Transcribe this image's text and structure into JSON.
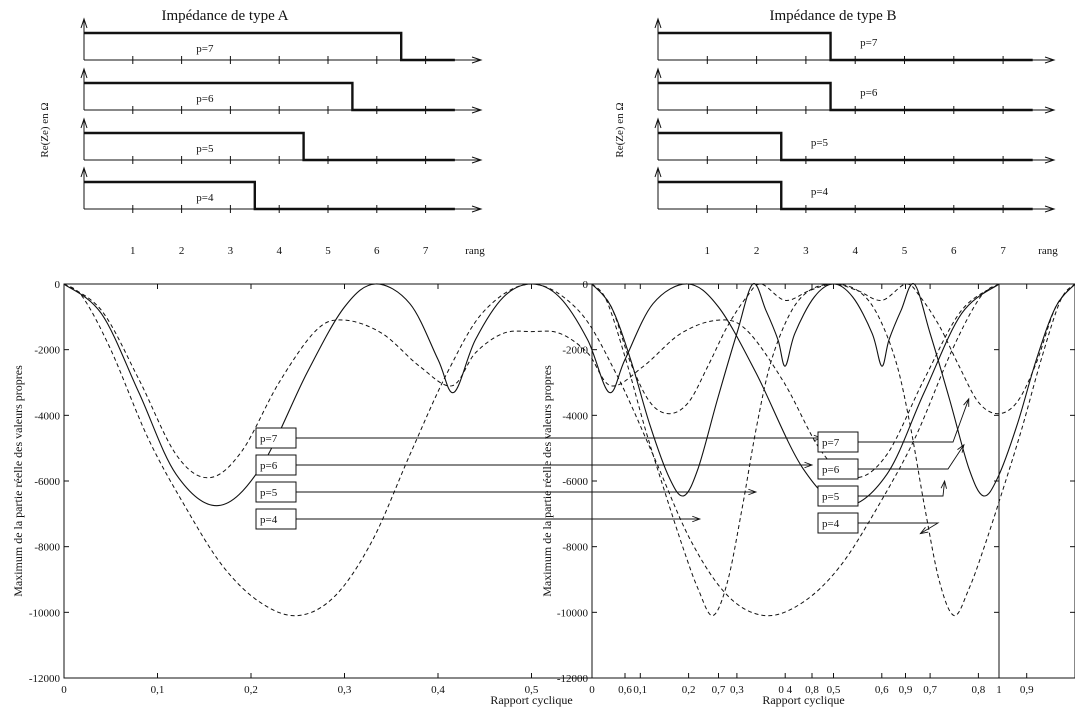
{
  "chart_data": [
    {
      "id": "A",
      "title": "Impédance de type A",
      "step_panel": {
        "ylabel": "Re(Ze) en  Ω",
        "xlabel": "rang",
        "x_ticks": [
          "1",
          "2",
          "3",
          "4",
          "5",
          "6",
          "7"
        ],
        "xlim": [
          0,
          7.6
        ],
        "rows": [
          {
            "label": "p=7",
            "edge": 6.5
          },
          {
            "label": "p=6",
            "edge": 5.5
          },
          {
            "label": "p=5",
            "edge": 4.5
          },
          {
            "label": "p=4",
            "edge": 3.5
          }
        ]
      },
      "main_panel": {
        "type": "line",
        "xlabel": "Rapport cyclique",
        "ylabel": "Maximum de la partie réelle des valeurs propres",
        "xlim": [
          0,
          1
        ],
        "ylim": [
          -12000,
          0
        ],
        "x_ticks": [
          {
            "v": 0,
            "t": "0"
          },
          {
            "v": 0.1,
            "t": "0,1"
          },
          {
            "v": 0.2,
            "t": "0,2"
          },
          {
            "v": 0.3,
            "t": "0,3"
          },
          {
            "v": 0.4,
            "t": "0,4"
          },
          {
            "v": 0.5,
            "t": "0,5"
          },
          {
            "v": 0.6,
            "t": "0,6"
          },
          {
            "v": 0.7,
            "t": "0,7"
          },
          {
            "v": 0.8,
            "t": "0,8"
          },
          {
            "v": 0.9,
            "t": "0,9"
          },
          {
            "v": 1,
            "t": "1"
          }
        ],
        "y_ticks": [
          {
            "v": 0,
            "t": "0"
          },
          {
            "v": -2000,
            "t": "-2000"
          },
          {
            "v": -4000,
            "t": "-4000"
          },
          {
            "v": -6000,
            "t": "-6000"
          },
          {
            "v": -8000,
            "t": "-8000"
          },
          {
            "v": -10000,
            "t": "-10000"
          },
          {
            "v": -12000,
            "t": "-12000"
          }
        ],
        "series": [
          {
            "name": "p=7",
            "style": "solid",
            "points": [
              [
                0,
                0
              ],
              [
                0.04,
                -900
              ],
              [
                0.08,
                -3300
              ],
              [
                0.12,
                -5800
              ],
              [
                0.165,
                -6750
              ],
              [
                0.21,
                -5600
              ],
              [
                0.26,
                -2700
              ],
              [
                0.3,
                -700
              ],
              [
                0.333,
                0
              ],
              [
                0.37,
                -600
              ],
              [
                0.4,
                -2300
              ],
              [
                0.417,
                -3300
              ],
              [
                0.44,
                -1700
              ],
              [
                0.47,
                -400
              ],
              [
                0.5,
                0
              ],
              [
                0.53,
                -400
              ],
              [
                0.56,
                -1700
              ],
              [
                0.583,
                -3300
              ],
              [
                0.6,
                -2300
              ],
              [
                0.63,
                -600
              ],
              [
                0.667,
                0
              ],
              [
                0.7,
                -700
              ],
              [
                0.74,
                -2700
              ],
              [
                0.79,
                -5600
              ],
              [
                0.835,
                -6750
              ],
              [
                0.88,
                -5800
              ],
              [
                0.92,
                -3300
              ],
              [
                0.96,
                -900
              ],
              [
                1,
                0
              ]
            ]
          },
          {
            "name": "p=6",
            "style": "dashed",
            "points": [
              [
                0,
                0
              ],
              [
                0.04,
                -800
              ],
              [
                0.08,
                -2900
              ],
              [
                0.12,
                -5200
              ],
              [
                0.155,
                -5900
              ],
              [
                0.19,
                -5100
              ],
              [
                0.23,
                -3000
              ],
              [
                0.27,
                -1400
              ],
              [
                0.3,
                -1100
              ],
              [
                0.34,
                -1500
              ],
              [
                0.38,
                -2500
              ],
              [
                0.415,
                -3100
              ],
              [
                0.44,
                -2100
              ],
              [
                0.47,
                -1500
              ],
              [
                0.5,
                -1450
              ],
              [
                0.53,
                -1500
              ],
              [
                0.56,
                -2100
              ],
              [
                0.585,
                -3100
              ],
              [
                0.62,
                -2500
              ],
              [
                0.66,
                -1500
              ],
              [
                0.7,
                -1100
              ],
              [
                0.73,
                -1400
              ],
              [
                0.77,
                -3000
              ],
              [
                0.81,
                -5100
              ],
              [
                0.845,
                -5900
              ],
              [
                0.88,
                -5200
              ],
              [
                0.92,
                -2900
              ],
              [
                0.96,
                -800
              ],
              [
                1,
                0
              ]
            ]
          },
          {
            "name": "p=5",
            "style": "dashed",
            "points": [
              [
                0,
                0
              ],
              [
                0.02,
                -400
              ],
              [
                0.05,
                -2000
              ],
              [
                0.09,
                -4700
              ],
              [
                0.13,
                -6800
              ],
              [
                0.17,
                -8600
              ],
              [
                0.21,
                -9700
              ],
              [
                0.25,
                -10100
              ],
              [
                0.29,
                -9500
              ],
              [
                0.33,
                -7800
              ],
              [
                0.37,
                -5200
              ],
              [
                0.41,
                -2700
              ],
              [
                0.45,
                -800
              ],
              [
                0.5,
                0
              ],
              [
                0.55,
                -800
              ],
              [
                0.59,
                -2700
              ],
              [
                0.63,
                -5200
              ],
              [
                0.67,
                -7800
              ],
              [
                0.71,
                -9500
              ],
              [
                0.75,
                -10100
              ],
              [
                0.79,
                -9700
              ],
              [
                0.83,
                -8600
              ],
              [
                0.87,
                -6800
              ],
              [
                0.91,
                -4700
              ],
              [
                0.95,
                -2000
              ],
              [
                0.98,
                -400
              ],
              [
                1,
                0
              ]
            ]
          }
        ],
        "legend": [
          {
            "label": "p=7",
            "target_x": 0.81,
            "target_y": -4800
          },
          {
            "label": "p=6",
            "target_x": 0.8,
            "target_y": -5800
          },
          {
            "label": "p=5",
            "target_x": 0.74,
            "target_y": -6700
          },
          {
            "label": "p=4",
            "target_x": 0.68,
            "target_y": -7600
          }
        ]
      }
    },
    {
      "id": "B",
      "title": "Impédance de type B",
      "step_panel": {
        "ylabel": "Re(Ze) en  Ω",
        "xlabel": "rang",
        "x_ticks": [
          "1",
          "2",
          "3",
          "4",
          "5",
          "6",
          "7"
        ],
        "xlim": [
          0,
          7.9
        ],
        "rows": [
          {
            "label": "p=7",
            "edge": 3.5
          },
          {
            "label": "p=6",
            "edge": 3.5
          },
          {
            "label": "p=5",
            "edge": 2.5
          },
          {
            "label": "p=4",
            "edge": 2.5
          }
        ]
      },
      "main_panel": {
        "type": "line",
        "xlabel": "Rapport cyclique",
        "ylabel": "Maximum de la partie réelle des valeurs propres",
        "xlim": [
          0,
          1
        ],
        "ylim": [
          -12000,
          0
        ],
        "x_ticks": [
          {
            "v": 0,
            "t": "0"
          },
          {
            "v": 0.1,
            "t": "0,1"
          },
          {
            "v": 0.2,
            "t": "0,2"
          },
          {
            "v": 0.3,
            "t": "0,3"
          },
          {
            "v": 0.4,
            "t": "0 4"
          },
          {
            "v": 0.5,
            "t": "0,5"
          },
          {
            "v": 0.6,
            "t": "0,6"
          },
          {
            "v": 0.7,
            "t": "0,7"
          },
          {
            "v": 0.8,
            "t": "0,8"
          },
          {
            "v": 0.9,
            "t": "0,9"
          }
        ],
        "y_ticks": [
          {
            "v": 0,
            "t": "0"
          },
          {
            "v": -2000,
            "t": "-2000"
          },
          {
            "v": -4000,
            "t": "-4000"
          },
          {
            "v": -6000,
            "t": "-6000"
          },
          {
            "v": -8000,
            "t": "-8000"
          },
          {
            "v": -10000,
            "t": "-10000"
          },
          {
            "v": -12000,
            "t": "-12000"
          }
        ],
        "series": [
          {
            "name": "p=7",
            "style": "solid",
            "points": [
              [
                0,
                0
              ],
              [
                0.04,
                -700
              ],
              [
                0.08,
                -2300
              ],
              [
                0.12,
                -4300
              ],
              [
                0.16,
                -5900
              ],
              [
                0.19,
                -6450
              ],
              [
                0.22,
                -5600
              ],
              [
                0.26,
                -3500
              ],
              [
                0.3,
                -1500
              ],
              [
                0.333,
                0
              ],
              [
                0.36,
                -800
              ],
              [
                0.385,
                -1700
              ],
              [
                0.4,
                -2500
              ],
              [
                0.42,
                -1500
              ],
              [
                0.46,
                -400
              ],
              [
                0.5,
                0
              ],
              [
                0.54,
                -400
              ],
              [
                0.58,
                -1500
              ],
              [
                0.6,
                -2500
              ],
              [
                0.615,
                -1700
              ],
              [
                0.64,
                -800
              ],
              [
                0.667,
                0
              ],
              [
                0.7,
                -1500
              ],
              [
                0.74,
                -3500
              ],
              [
                0.78,
                -5600
              ],
              [
                0.81,
                -6450
              ],
              [
                0.84,
                -5900
              ],
              [
                0.88,
                -4300
              ],
              [
                0.92,
                -2300
              ],
              [
                0.96,
                -700
              ],
              [
                1,
                0
              ]
            ]
          },
          {
            "name": "p=6",
            "style": "dashed",
            "points": [
              [
                0,
                0
              ],
              [
                0.04,
                -700
              ],
              [
                0.08,
                -2400
              ],
              [
                0.12,
                -3600
              ],
              [
                0.16,
                -3950
              ],
              [
                0.2,
                -3600
              ],
              [
                0.24,
                -2500
              ],
              [
                0.28,
                -1300
              ],
              [
                0.32,
                -400
              ],
              [
                0.35,
                0
              ],
              [
                0.4,
                -500
              ],
              [
                0.45,
                -200
              ],
              [
                0.5,
                0
              ],
              [
                0.55,
                -200
              ],
              [
                0.6,
                -500
              ],
              [
                0.65,
                0
              ],
              [
                0.68,
                -400
              ],
              [
                0.72,
                -1300
              ],
              [
                0.76,
                -2500
              ],
              [
                0.8,
                -3600
              ],
              [
                0.84,
                -3950
              ],
              [
                0.88,
                -3600
              ],
              [
                0.92,
                -2400
              ],
              [
                0.96,
                -700
              ],
              [
                1,
                0
              ]
            ]
          },
          {
            "name": "p=5",
            "style": "dashed",
            "points": [
              [
                0,
                0
              ],
              [
                0.03,
                -500
              ],
              [
                0.07,
                -2300
              ],
              [
                0.11,
                -4400
              ],
              [
                0.15,
                -6300
              ],
              [
                0.19,
                -8100
              ],
              [
                0.22,
                -9300
              ],
              [
                0.25,
                -10100
              ],
              [
                0.28,
                -9100
              ],
              [
                0.31,
                -6900
              ],
              [
                0.34,
                -4400
              ],
              [
                0.37,
                -2400
              ],
              [
                0.41,
                -900
              ],
              [
                0.45,
                -200
              ],
              [
                0.5,
                0
              ],
              [
                0.55,
                -200
              ],
              [
                0.59,
                -900
              ],
              [
                0.63,
                -2400
              ],
              [
                0.66,
                -4400
              ],
              [
                0.69,
                -6900
              ],
              [
                0.72,
                -9100
              ],
              [
                0.75,
                -10100
              ],
              [
                0.78,
                -9300
              ],
              [
                0.81,
                -8100
              ],
              [
                0.85,
                -6300
              ],
              [
                0.89,
                -4400
              ],
              [
                0.93,
                -2300
              ],
              [
                0.97,
                -500
              ],
              [
                1,
                0
              ]
            ]
          }
        ],
        "legend": [
          {
            "label": "p=7",
            "target_x": 0.78,
            "target_y": -3500
          },
          {
            "label": "p=6",
            "target_x": 0.77,
            "target_y": -4900
          },
          {
            "label": "p=5",
            "target_x": 0.73,
            "target_y": -6000
          },
          {
            "label": "p=4",
            "target_x": 0.68,
            "target_y": -7600
          }
        ]
      }
    }
  ]
}
